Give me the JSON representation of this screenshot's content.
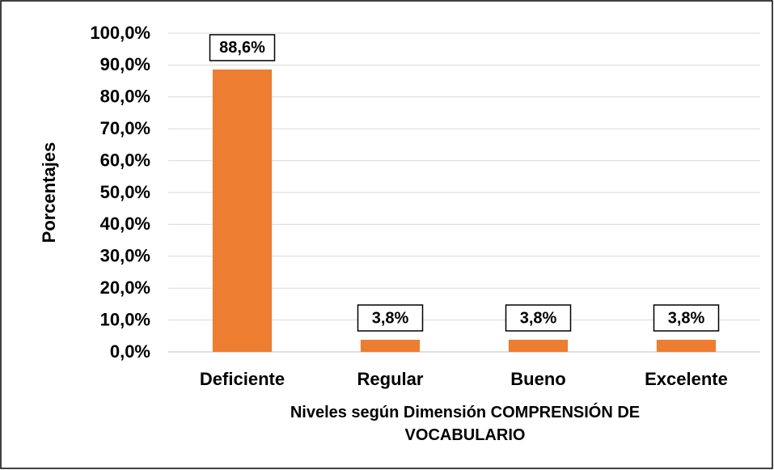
{
  "chart_data": {
    "type": "bar",
    "categories": [
      "Deficiente",
      "Regular",
      "Bueno",
      "Excelente"
    ],
    "values": [
      88.6,
      3.8,
      3.8,
      3.8
    ],
    "value_labels": [
      "88,6%",
      "3,8%",
      "3,8%",
      "3,8%"
    ],
    "color": "#ed7d31",
    "ylim": [
      0,
      100
    ],
    "yticks": [
      {
        "value": 0,
        "label": "0,0%"
      },
      {
        "value": 10,
        "label": "10,0%"
      },
      {
        "value": 20,
        "label": "20,0%"
      },
      {
        "value": 30,
        "label": "30,0%"
      },
      {
        "value": 40,
        "label": "40,0%"
      },
      {
        "value": 50,
        "label": "50,0%"
      },
      {
        "value": 60,
        "label": "60,0%"
      },
      {
        "value": 70,
        "label": "70,0%"
      },
      {
        "value": 80,
        "label": "80,0%"
      },
      {
        "value": 90,
        "label": "90,0%"
      },
      {
        "value": 100,
        "label": "100,0%"
      }
    ],
    "grid": true,
    "ylabel": "Porcentajes",
    "xlabel": "Niveles según Dimensión COMPRENSIÓN DE VOCABULARIO"
  }
}
